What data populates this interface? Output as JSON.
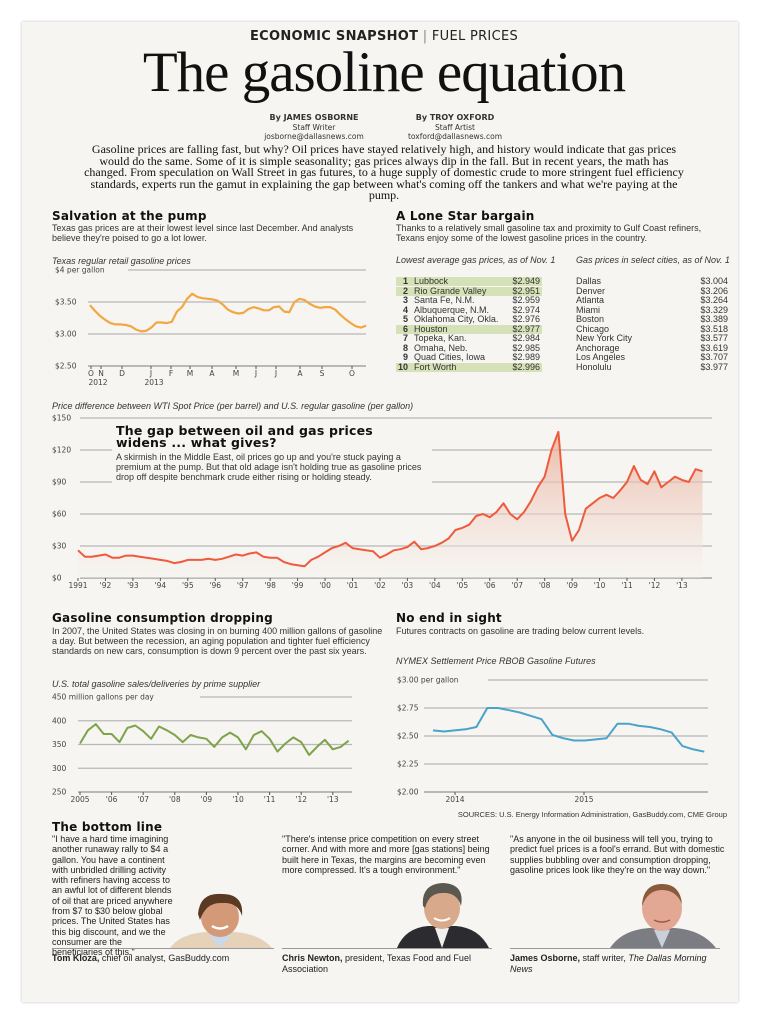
{
  "header": {
    "kicker_bold": "ECONOMIC SNAPSHOT",
    "kicker_sep": "|",
    "kicker_topic": "FUEL PRICES",
    "title": "The gasoline equation"
  },
  "bylines": [
    {
      "name": "By JAMES OSBORNE",
      "role": "Staff Writer",
      "email": "josborne@dallasnews.com"
    },
    {
      "name": "By TROY OXFORD",
      "role": "Staff Artist",
      "email": "toxford@dallasnews.com"
    }
  ],
  "intro": "Gasoline prices are falling fast, but why? Oil prices have stayed relatively high, and history would indicate that gas prices would do the same. Some of it is simple seasonality; gas prices always dip in the fall. But in recent years, the math has changed. From speculation on Wall Street in gas futures, to a huge supply of domestic crude to more stringent fuel efficiency standards, experts run the gamut in explaining the gap between what's coming off the tankers and what we're paying at the pump.",
  "salvation": {
    "heading": "Salvation at the pump",
    "body": "Texas gas prices are at their lowest level since last December. And analysts believe they're poised to go a lot lower."
  },
  "lone_star": {
    "heading": "A Lone Star bargain",
    "body": "Thanks to a relatively small gasoline tax and proximity to Gulf Coast refiners, Texans enjoy some of the lowest gasoline prices in the country.",
    "lowest_label": "Lowest average gas prices, as of Nov. 1",
    "lowest": [
      {
        "rank": "1",
        "city": "Lubbock",
        "price": "$2.949",
        "highlight": true
      },
      {
        "rank": "2",
        "city": "Rio Grande Valley",
        "price": "$2.951",
        "highlight": true
      },
      {
        "rank": "3",
        "city": "Santa Fe, N.M.",
        "price": "$2.959",
        "highlight": false
      },
      {
        "rank": "4",
        "city": "Albuquerque, N.M.",
        "price": "$2.974",
        "highlight": false
      },
      {
        "rank": "5",
        "city": "Oklahoma City, Okla.",
        "price": "$2.976",
        "highlight": false
      },
      {
        "rank": "6",
        "city": "Houston",
        "price": "$2.977",
        "highlight": true
      },
      {
        "rank": "7",
        "city": "Topeka, Kan.",
        "price": "$2.984",
        "highlight": false
      },
      {
        "rank": "8",
        "city": "Omaha, Neb.",
        "price": "$2.985",
        "highlight": false
      },
      {
        "rank": "9",
        "city": "Quad Cities, Iowa",
        "price": "$2.989",
        "highlight": false
      },
      {
        "rank": "10",
        "city": "Fort Worth",
        "price": "$2.996",
        "highlight": true
      }
    ],
    "select_label": "Gas prices in select cities, as of Nov. 1",
    "select": [
      {
        "city": "Dallas",
        "price": "$3.004"
      },
      {
        "city": "Denver",
        "price": "$3.206"
      },
      {
        "city": "Atlanta",
        "price": "$3.264"
      },
      {
        "city": "Miami",
        "price": "$3.329"
      },
      {
        "city": "Boston",
        "price": "$3.389"
      },
      {
        "city": "Chicago",
        "price": "$3.518"
      },
      {
        "city": "New York City",
        "price": "$3.577"
      },
      {
        "city": "Anchorage",
        "price": "$3.619"
      },
      {
        "city": "Los Angeles",
        "price": "$3.707"
      },
      {
        "city": "Honolulu",
        "price": "$3.977"
      }
    ],
    "highlight_color": "#d5e1b6"
  },
  "gap": {
    "heading": "The gap between oil and gas prices widens ... what gives?",
    "body": "A skirmish in the Middle East, oil prices go up and you're stuck paying a premium at the pump. But that old adage isn't holding true as gasoline prices drop off despite benchmark crude either rising or holding steady."
  },
  "consumption": {
    "heading": "Gasoline consumption dropping",
    "body": "In 2007, the United States was closing in on burning 400 million gallons of gasoline a day. But between the recession, an aging population and tighter fuel efficiency standards on new cars, consumption is down 9 percent over the past six years."
  },
  "no_end": {
    "heading": "No end in sight",
    "body": "Futures contracts on gasoline are trading below current levels."
  },
  "sources": "SOURCES: U.S. Energy Information Administration, GasBuddy.com, CME Group",
  "bottom_line": {
    "heading": "The bottom line",
    "quotes": [
      {
        "text": "\"I have a hard time imagining another runaway rally to $4 a gallon. You have a continent with unbridled drilling activity with refiners having access to an awful lot of different blends of oil that are priced anywhere from $7 to $30 below global prices. The United States has this big discount, and we the consumer are the beneficiaries of this.\"",
        "name": "Tom Kloza,",
        "title": "chief oil analyst, GasBuddy.com",
        "title_italic": ""
      },
      {
        "text": "\"There's intense price competition on every street corner. And with more and more [gas stations] being built here in Texas, the margins are becoming even more compressed. It's a tough environment.\"",
        "name": "Chris Newton,",
        "title": "president, Texas Food and Fuel Association",
        "title_italic": ""
      },
      {
        "text": "\"As anyone in the oil business will tell you, trying to predict fuel prices is a fool's errand. But with domestic supplies bubbling over and consumption dropping, gasoline prices look like they're on the way down.\"",
        "name": "James Osborne,",
        "title": "staff writer,",
        "title_italic": "The Dallas Morning News"
      }
    ]
  },
  "chart_data": [
    {
      "type": "line",
      "title": "Texas regular retail gasoline prices",
      "ylabel": "$4 per gallon",
      "yticks": [
        "$4 per gallon",
        "$3.50",
        "$3.00",
        "$2.50"
      ],
      "ytick_values": [
        4,
        3.5,
        3,
        2.5
      ],
      "ylim": [
        2.5,
        4
      ],
      "xticks": [
        "O",
        "N",
        "D",
        "J",
        "F",
        "M",
        "A",
        "M",
        "J",
        "J",
        "A",
        "S",
        "O"
      ],
      "xtick_years": [
        "2012",
        "2013"
      ],
      "x_range": [
        "Oct 2012",
        "Oct 2013"
      ],
      "grid": true,
      "color": "#f2a743",
      "values": [
        3.45,
        3.36,
        3.28,
        3.22,
        3.17,
        3.15,
        3.15,
        3.14,
        3.12,
        3.07,
        3.04,
        3.05,
        3.1,
        3.18,
        3.18,
        3.17,
        3.19,
        3.35,
        3.42,
        3.55,
        3.63,
        3.58,
        3.56,
        3.55,
        3.54,
        3.52,
        3.46,
        3.38,
        3.34,
        3.32,
        3.33,
        3.39,
        3.42,
        3.4,
        3.37,
        3.37,
        3.42,
        3.43,
        3.35,
        3.34,
        3.5,
        3.55,
        3.53,
        3.47,
        3.43,
        3.41,
        3.42,
        3.42,
        3.38,
        3.3,
        3.23,
        3.17,
        3.12,
        3.1,
        3.13
      ]
    },
    {
      "type": "area",
      "title": "Price difference between WTI Spot Price (per barrel) and U.S. regular gasoline (per gallon)",
      "yticks": [
        "$150",
        "$120",
        "$90",
        "$60",
        "$30",
        "$0"
      ],
      "ytick_values": [
        150,
        120,
        90,
        60,
        30,
        0
      ],
      "ylim": [
        0,
        150
      ],
      "xticks": [
        "1991",
        "'92",
        "'93",
        "'94",
        "'95",
        "'96",
        "'97",
        "'98",
        "'99",
        "'00",
        "'01",
        "'02",
        "'03",
        "'04",
        "'05",
        "'06",
        "'07",
        "'08",
        "'09",
        "'10",
        "'11",
        "'12",
        "'13"
      ],
      "x_start": 1991,
      "x_step": 0.25,
      "grid": true,
      "color": "#ef5a3c",
      "values": [
        26,
        20,
        20,
        21,
        22,
        19,
        19,
        21,
        21,
        20,
        19,
        18,
        17,
        16,
        14,
        15,
        17,
        17,
        17,
        18,
        17,
        18,
        20,
        22,
        21,
        23,
        24,
        20,
        19,
        19,
        15,
        13,
        12,
        11,
        17,
        20,
        24,
        28,
        30,
        33,
        28,
        27,
        26,
        25,
        19,
        22,
        26,
        27,
        29,
        34,
        27,
        28,
        30,
        33,
        37,
        45,
        47,
        50,
        58,
        60,
        57,
        62,
        70,
        60,
        55,
        62,
        72,
        85,
        95,
        120,
        137,
        60,
        35,
        45,
        65,
        70,
        75,
        78,
        75,
        82,
        90,
        105,
        92,
        88,
        100,
        85,
        90,
        95,
        92,
        90,
        102,
        100
      ]
    },
    {
      "type": "line",
      "title": "U.S. total gasoline sales/deliveries by prime supplier",
      "yticks": [
        "450 million gallons per day",
        "400",
        "350",
        "300",
        "250"
      ],
      "ytick_values": [
        450,
        400,
        350,
        300,
        250
      ],
      "ylim": [
        250,
        450
      ],
      "xticks": [
        "2005",
        "'06",
        "'07",
        "'08",
        "'09",
        "'10",
        "'11",
        "'12",
        "'13"
      ],
      "x_start": 2005,
      "x_step": 0.25,
      "grid": true,
      "color": "#7ea34a",
      "values": [
        352,
        380,
        393,
        372,
        372,
        355,
        385,
        390,
        378,
        362,
        388,
        380,
        370,
        355,
        370,
        365,
        362,
        345,
        365,
        375,
        365,
        340,
        370,
        378,
        362,
        335,
        352,
        365,
        355,
        328,
        345,
        360,
        340,
        345,
        358
      ]
    },
    {
      "type": "line",
      "title": "NYMEX Settlement Price RBOB Gasoline Futures",
      "yticks": [
        "$3.00 per gallon",
        "$2.75",
        "$2.50",
        "$2.25",
        "$2.00"
      ],
      "ytick_values": [
        3,
        2.75,
        2.5,
        2.25,
        2
      ],
      "ylim": [
        2,
        3
      ],
      "xticks": [
        "2014",
        "2015"
      ],
      "x_range": [
        "Nov 2013",
        "Dec 2015"
      ],
      "grid": true,
      "color": "#4aa3c8",
      "values": [
        2.55,
        2.54,
        2.55,
        2.56,
        2.58,
        2.75,
        2.75,
        2.73,
        2.71,
        2.68,
        2.65,
        2.51,
        2.48,
        2.46,
        2.46,
        2.47,
        2.48,
        2.61,
        2.61,
        2.59,
        2.58,
        2.56,
        2.53,
        2.41,
        2.38,
        2.36
      ]
    }
  ]
}
